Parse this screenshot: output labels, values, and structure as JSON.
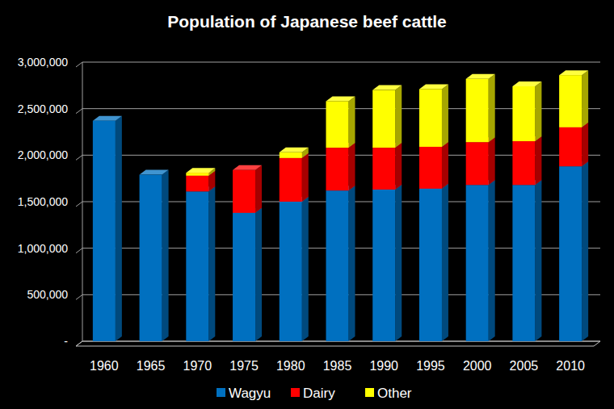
{
  "chart_data": {
    "type": "bar",
    "title": "Population of Japanese beef cattle",
    "categories": [
      "1960",
      "1965",
      "1970",
      "1975",
      "1980",
      "1985",
      "1990",
      "1995",
      "2000",
      "2005",
      "2010"
    ],
    "series": [
      {
        "name": "Wagyu",
        "color": "#0070c0",
        "values": [
          2370000,
          1790000,
          1610000,
          1380000,
          1500000,
          1620000,
          1630000,
          1640000,
          1680000,
          1680000,
          1880000
        ]
      },
      {
        "name": "Dairy",
        "color": "#ff0000",
        "values": [
          0,
          0,
          170000,
          460000,
          470000,
          460000,
          450000,
          450000,
          460000,
          470000,
          420000
        ]
      },
      {
        "name": "Other",
        "color": "#ffff00",
        "values": [
          0,
          0,
          30000,
          0,
          60000,
          500000,
          620000,
          620000,
          680000,
          590000,
          560000
        ]
      }
    ],
    "ylim": [
      0,
      3000000
    ],
    "yticks": [
      {
        "value": 0,
        "label": "-"
      },
      {
        "value": 500000,
        "label": "500,000"
      },
      {
        "value": 1000000,
        "label": "1,000,000"
      },
      {
        "value": 1500000,
        "label": "1,500,000"
      },
      {
        "value": 2000000,
        "label": "2,000,000"
      },
      {
        "value": 2500000,
        "label": "2,500,000"
      },
      {
        "value": 3000000,
        "label": "3,000,000"
      }
    ],
    "stacked": true,
    "grid": true,
    "legend": "bottom"
  }
}
